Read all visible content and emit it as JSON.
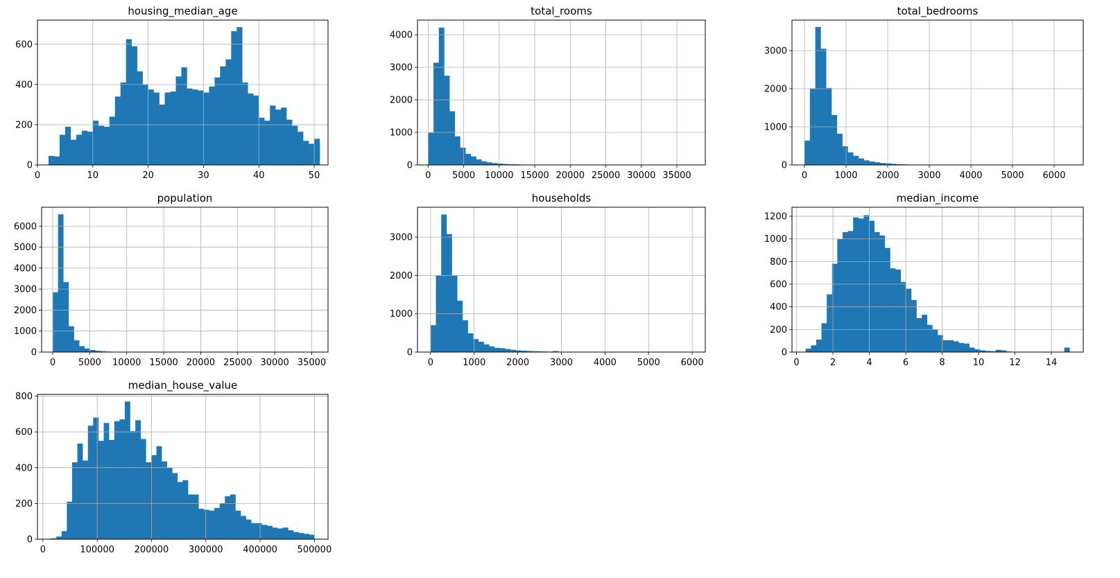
{
  "figure": {
    "bar_color": "#1f77b4",
    "grid_color": "#b0b0b0",
    "background": "#ffffff"
  },
  "chart_data": [
    {
      "type": "histogram",
      "title": "housing_median_age",
      "bins": 50,
      "xlim": [
        0,
        52.5
      ],
      "bin_start": 1,
      "bin_width": 1,
      "ylim": [
        0,
        720
      ],
      "xticks": [
        0,
        10,
        20,
        30,
        40,
        50
      ],
      "xtick_labels": [
        "0",
        "10",
        "20",
        "30",
        "40",
        "50"
      ],
      "yticks": [
        0,
        200,
        400,
        600
      ],
      "ytick_labels": [
        "0",
        "200",
        "400",
        "600"
      ],
      "values": [
        0,
        45,
        42,
        150,
        190,
        125,
        150,
        170,
        165,
        220,
        195,
        190,
        240,
        340,
        410,
        625,
        590,
        465,
        400,
        375,
        360,
        300,
        360,
        365,
        440,
        485,
        380,
        375,
        370,
        360,
        390,
        435,
        490,
        525,
        665,
        685,
        410,
        355,
        345,
        235,
        220,
        295,
        275,
        285,
        225,
        195,
        165,
        120,
        105,
        130
      ]
    },
    {
      "type": "histogram",
      "title": "total_rooms",
      "bins": 50,
      "xlim": [
        -1500,
        39000
      ],
      "bin_start": 0,
      "bin_width": 750,
      "ylim": [
        0,
        4450
      ],
      "xticks": [
        0,
        5000,
        10000,
        15000,
        20000,
        25000,
        30000,
        35000
      ],
      "xtick_labels": [
        "0",
        "5000",
        "10000",
        "15000",
        "20000",
        "25000",
        "30000",
        "35000"
      ],
      "yticks": [
        0,
        1000,
        2000,
        3000,
        4000
      ],
      "ytick_labels": [
        "0",
        "1000",
        "2000",
        "3000",
        "4000"
      ],
      "values": [
        990,
        3140,
        4220,
        2740,
        1650,
        880,
        530,
        340,
        260,
        170,
        110,
        80,
        55,
        40,
        30,
        22,
        18,
        14,
        10,
        8,
        6,
        5,
        4,
        3,
        3,
        2,
        2,
        2,
        1,
        1,
        1,
        1,
        1,
        0,
        0,
        0,
        0,
        0,
        0,
        0,
        0,
        0,
        0,
        0,
        0,
        0,
        0,
        0,
        0,
        1
      ]
    },
    {
      "type": "histogram",
      "title": "total_bedrooms",
      "bins": 50,
      "xlim": [
        -300,
        6700
      ],
      "bin_start": 0,
      "bin_width": 130,
      "ylim": [
        0,
        3800
      ],
      "xticks": [
        0,
        1000,
        2000,
        3000,
        4000,
        5000,
        6000
      ],
      "xtick_labels": [
        "0",
        "1000",
        "2000",
        "3000",
        "4000",
        "5000",
        "6000"
      ],
      "yticks": [
        0,
        1000,
        2000,
        3000
      ],
      "ytick_labels": [
        "0",
        "1000",
        "2000",
        "3000"
      ],
      "values": [
        640,
        2010,
        3620,
        3050,
        2020,
        1310,
        820,
        490,
        330,
        240,
        170,
        120,
        90,
        70,
        50,
        40,
        30,
        20,
        15,
        10,
        8,
        6,
        5,
        4,
        3,
        2,
        2,
        1,
        1,
        1,
        1,
        0,
        0,
        0,
        0,
        0,
        0,
        0,
        0,
        0,
        0,
        0,
        0,
        0,
        0,
        0,
        0,
        0,
        0,
        1
      ]
    },
    {
      "type": "histogram",
      "title": "population",
      "bins": 50,
      "xlim": [
        -1500,
        37200
      ],
      "bin_start": 0,
      "bin_width": 715,
      "ylim": [
        0,
        6900
      ],
      "xticks": [
        0,
        5000,
        10000,
        15000,
        20000,
        25000,
        30000,
        35000
      ],
      "xtick_labels": [
        "0",
        "5000",
        "10000",
        "15000",
        "20000",
        "25000",
        "30000",
        "35000"
      ],
      "yticks": [
        0,
        1000,
        2000,
        3000,
        4000,
        5000,
        6000
      ],
      "ytick_labels": [
        "0",
        "1000",
        "2000",
        "3000",
        "4000",
        "5000",
        "6000"
      ],
      "values": [
        2850,
        6560,
        3330,
        1230,
        560,
        280,
        170,
        100,
        60,
        40,
        25,
        18,
        12,
        8,
        6,
        4,
        3,
        2,
        2,
        1,
        1,
        1,
        0,
        0,
        0,
        0,
        0,
        0,
        0,
        0,
        0,
        0,
        0,
        0,
        0,
        0,
        0,
        0,
        0,
        0,
        0,
        0,
        0,
        0,
        0,
        0,
        0,
        0,
        0,
        1
      ]
    },
    {
      "type": "histogram",
      "title": "households",
      "bins": 50,
      "xlim": [
        -300,
        6300
      ],
      "bin_start": 0,
      "bin_width": 122,
      "ylim": [
        0,
        3780
      ],
      "xticks": [
        0,
        1000,
        2000,
        3000,
        4000,
        5000,
        6000
      ],
      "xtick_labels": [
        "0",
        "1000",
        "2000",
        "3000",
        "4000",
        "5000",
        "6000"
      ],
      "yticks": [
        0,
        1000,
        2000,
        3000
      ],
      "ytick_labels": [
        "0",
        "1000",
        "2000",
        "3000"
      ],
      "values": [
        700,
        2000,
        3590,
        3080,
        2000,
        1340,
        830,
        490,
        340,
        270,
        200,
        150,
        110,
        100,
        80,
        60,
        45,
        35,
        28,
        22,
        18,
        14,
        12,
        25,
        10,
        8,
        6,
        5,
        4,
        3,
        3,
        2,
        2,
        1,
        1,
        1,
        0,
        0,
        0,
        0,
        0,
        0,
        0,
        0,
        0,
        0,
        0,
        0,
        0,
        1
      ]
    },
    {
      "type": "histogram",
      "title": "median_income",
      "bins": 50,
      "xlim": [
        -0.25,
        15.75
      ],
      "bin_start": 0.5,
      "bin_width": 0.29,
      "ylim": [
        0,
        1280
      ],
      "xticks": [
        0,
        2,
        4,
        6,
        8,
        10,
        12,
        14
      ],
      "xtick_labels": [
        "0",
        "2",
        "4",
        "6",
        "8",
        "10",
        "12",
        "14"
      ],
      "yticks": [
        0,
        200,
        400,
        600,
        800,
        1000,
        1200
      ],
      "ytick_labels": [
        "0",
        "200",
        "400",
        "600",
        "800",
        "1000",
        "1200"
      ],
      "values": [
        30,
        60,
        110,
        255,
        510,
        780,
        1000,
        1060,
        1070,
        1190,
        1180,
        1210,
        1160,
        1060,
        1030,
        920,
        740,
        730,
        620,
        560,
        460,
        300,
        330,
        240,
        200,
        150,
        105,
        105,
        95,
        80,
        75,
        40,
        25,
        15,
        10,
        8,
        20,
        15,
        5,
        3,
        2,
        1,
        1,
        0,
        0,
        0,
        0,
        0,
        0,
        40
      ]
    },
    {
      "type": "histogram",
      "title": "median_house_value",
      "bins": 50,
      "xlim": [
        -10000,
        525000
      ],
      "bin_start": 15000,
      "bin_width": 9700,
      "ylim": [
        0,
        810
      ],
      "xticks": [
        0,
        100000,
        200000,
        300000,
        400000,
        500000
      ],
      "xtick_labels": [
        "0",
        "100000",
        "200000",
        "300000",
        "400000",
        "500000"
      ],
      "yticks": [
        0,
        200,
        400,
        600,
        800
      ],
      "ytick_labels": [
        "0",
        "200",
        "400",
        "600",
        "800"
      ],
      "values": [
        5,
        15,
        45,
        210,
        430,
        535,
        440,
        635,
        680,
        550,
        650,
        555,
        660,
        670,
        770,
        605,
        665,
        560,
        430,
        470,
        520,
        435,
        400,
        370,
        320,
        330,
        250,
        250,
        170,
        165,
        160,
        175,
        200,
        240,
        250,
        160,
        130,
        110,
        90,
        90,
        80,
        75,
        65,
        60,
        65,
        50,
        40,
        35,
        30,
        25
      ]
    }
  ]
}
